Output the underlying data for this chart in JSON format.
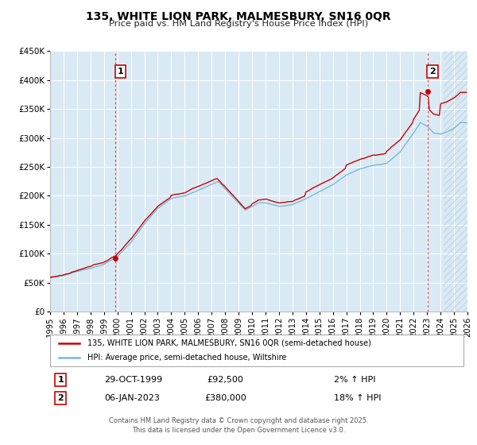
{
  "title": "135, WHITE LION PARK, MALMESBURY, SN16 0QR",
  "subtitle": "Price paid vs. HM Land Registry's House Price Index (HPI)",
  "background_color": "#ffffff",
  "plot_background_color": "#daeaf5",
  "grid_color": "#ffffff",
  "hatch_color": "#c8d8e8",
  "xlim": [
    1995,
    2026
  ],
  "ylim": [
    0,
    450000
  ],
  "yticks": [
    0,
    50000,
    100000,
    150000,
    200000,
    250000,
    300000,
    350000,
    400000,
    450000
  ],
  "ytick_labels": [
    "£0",
    "£50K",
    "£100K",
    "£150K",
    "£200K",
    "£250K",
    "£300K",
    "£350K",
    "£400K",
    "£450K"
  ],
  "xtick_labels": [
    "1995",
    "1996",
    "1997",
    "1998",
    "1999",
    "2000",
    "2001",
    "2002",
    "2003",
    "2004",
    "2005",
    "2006",
    "2007",
    "2008",
    "2009",
    "2010",
    "2011",
    "2012",
    "2013",
    "2014",
    "2015",
    "2016",
    "2017",
    "2018",
    "2019",
    "2020",
    "2021",
    "2022",
    "2023",
    "2024",
    "2025",
    "2026"
  ],
  "hpi_color": "#7ab8d9",
  "price_color": "#cc0000",
  "marker1_date": 1999.83,
  "marker1_price": 92500,
  "marker2_date": 2023.02,
  "marker2_price": 380000,
  "vline_color": "#dd4444",
  "legend_line1": "135, WHITE LION PARK, MALMESBURY, SN16 0QR (semi-detached house)",
  "legend_line2": "HPI: Average price, semi-detached house, Wiltshire",
  "annotation1_date": "29-OCT-1999",
  "annotation1_price": "£92,500",
  "annotation1_hpi": "2% ↑ HPI",
  "annotation2_date": "06-JAN-2023",
  "annotation2_price": "£380,000",
  "annotation2_hpi": "18% ↑ HPI",
  "footer": "Contains HM Land Registry data © Crown copyright and database right 2025.\nThis data is licensed under the Open Government Licence v3.0."
}
